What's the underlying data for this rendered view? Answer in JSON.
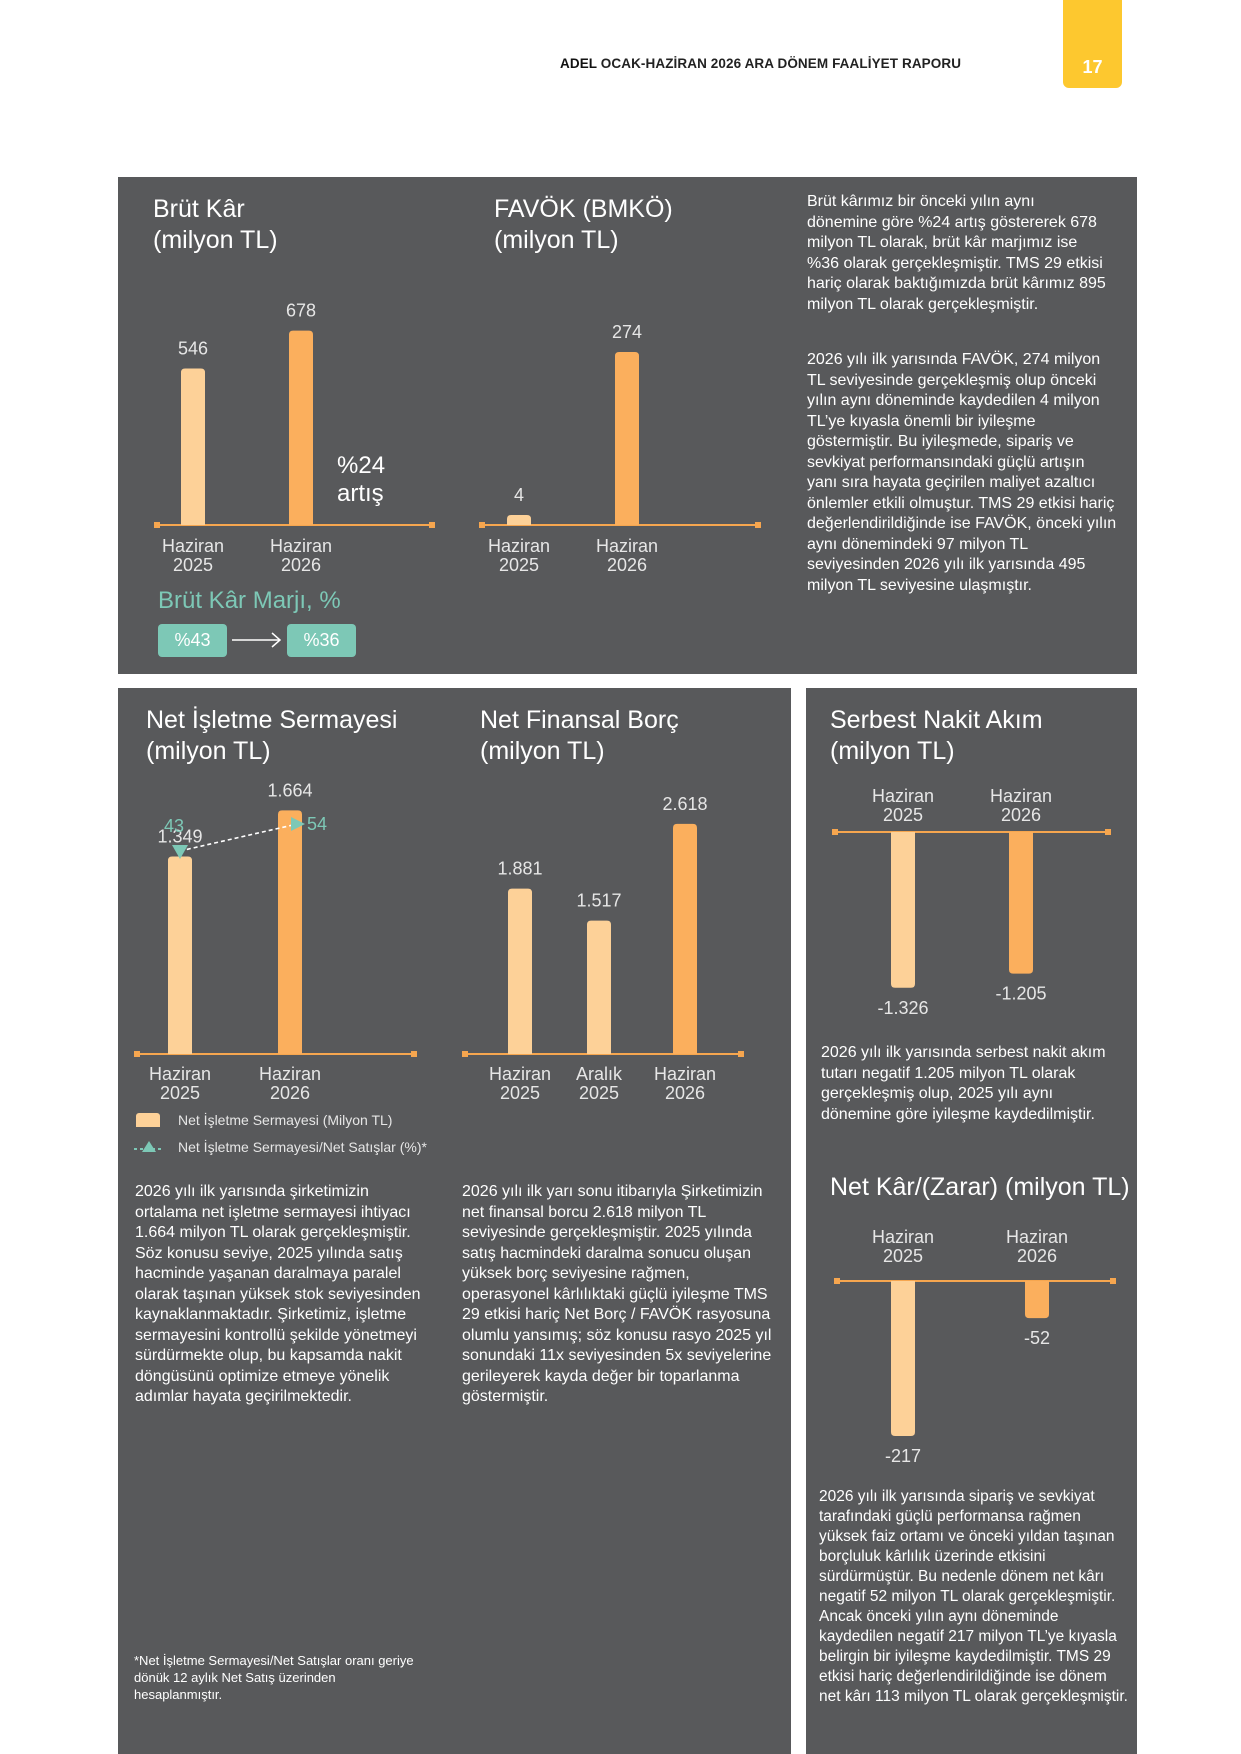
{
  "header": {
    "brand": "ADEL",
    "report_title": "OCAK-HAZİRAN 2026 ARA DÖNEM FAALİYET RAPORU",
    "page_number": "17"
  },
  "colors": {
    "panel": "#58595b",
    "bar_light": "#fdd198",
    "bar_dark": "#fbaf5d",
    "teal": "#7dc8b6",
    "axis": "#f6a64f",
    "tab": "#fdc82f"
  },
  "brut_kar": {
    "title": "Brüt Kâr\n(milyon TL)",
    "note": "%24\nartış",
    "margin_title": "Brüt Kâr Marjı, %",
    "margin_from": "%43",
    "margin_to": "%36"
  },
  "favok": {
    "title": "FAVÖK (BMKÖ)\n(milyon TL)"
  },
  "favok_text": {
    "p1": "Brüt kârımız bir önceki yılın aynı dönemine göre %24 artış göstererek 678 milyon TL olarak, brüt kâr marjımız ise %36 olarak gerçekleşmiştir. TMS 29 etkisi hariç olarak baktığımızda brüt kârımız 895 milyon TL olarak gerçekleşmiştir.",
    "p2": "2026 yılı ilk yarısında FAVÖK, 274 milyon TL seviyesinde gerçekleşmiş olup önceki yılın aynı döneminde kaydedilen 4 milyon TL’ye kıyasla önemli bir iyileşme göstermiştir. Bu iyileşmede, sipariş ve sevkiyat performansındaki güçlü artışın yanı sıra hayata geçirilen maliyet azaltıcı önlemler etkili olmuştur. TMS 29 etkisi hariç değerlendirildiğinde ise FAVÖK, önceki yılın aynı dönemindeki 97 milyon TL seviyesinden 2026 yılı ilk yarısında 495 milyon TL seviyesine ulaşmıştır."
  },
  "nis": {
    "title": "Net İşletme Sermayesi\n(milyon TL)",
    "legend_bar": "Net İşletme Sermayesi (Milyon TL)",
    "legend_line": "Net İşletme Sermayesi/Net Satışlar (%)*",
    "text": "2026 yılı ilk yarısında şirketimizin ortalama net işletme sermayesi ihtiyacı 1.664 milyon TL olarak gerçekleşmiştir. Söz konusu seviye, 2025 yılında satış hacminde yaşanan daralmaya paralel olarak taşınan yüksek stok seviyesinden kaynaklanmaktadır. Şirketimiz, işletme sermayesini kontrollü şekilde yönetmeyi sürdürmekte olup, bu kapsamda nakit döngüsünü optimize etmeye yönelik adımlar hayata geçirilmektedir.",
    "footnote": "*Net İşletme Sermayesi/Net Satışlar oranı geriye dönük 12 aylık Net Satış üzerinden hesaplanmıştır."
  },
  "nfb": {
    "title": "Net Finansal Borç\n(milyon TL)",
    "text": "2026 yılı ilk yarı sonu itibarıyla Şirketimizin net finansal borcu 2.618 milyon TL seviyesinde gerçekleşmiştir. 2025 yılında satış hacmindeki daralma sonucu oluşan yüksek borç seviyesine rağmen, operasyonel kârlılıktaki güçlü iyileşme TMS 29 etkisi hariç Net Borç / FAVÖK rasyosuna olumlu yansımış; söz konusu rasyo 2025 yıl sonundaki 11x seviyesinden 5x seviyelerine gerileyerek kayda değer bir toparlanma göstermiştir."
  },
  "sna": {
    "title": "Serbest Nakit Akım\n(milyon TL)",
    "text": "2026 yılı ilk yarısında serbest nakit akım tutarı negatif 1.205 milyon TL olarak gerçekleşmiş olup, 2025 yılı aynı dönemine göre iyileşme kaydedilmiştir."
  },
  "netkar": {
    "title": "Net Kâr/(Zarar) (milyon TL)",
    "text": "2026 yılı ilk yarısında sipariş ve sevkiyat tarafındaki güçlü performansa rağmen yüksek faiz ortamı ve önceki yıldan taşınan borçluluk kârlılık üzerinde etkisini sürdürmüştür. Bu nedenle dönem net kârı negatif 52 milyon TL olarak gerçekleşmiştir. Ancak önceki yılın aynı döneminde kaydedilen negatif 217 milyon TL’ye kıyasla belirgin bir iyileşme kaydedilmiştir. TMS 29 etkisi hariç değerlendirildiğinde ise dönem net kârı 113 milyon TL olarak gerçekleşmiştir."
  },
  "chart_data": [
    {
      "type": "bar",
      "id": "brut_kar",
      "categories": [
        "Haziran\n2025",
        "Haziran\n2026"
      ],
      "values": [
        546,
        678
      ],
      "labels": [
        "546",
        "678"
      ],
      "ylim": [
        0,
        800
      ]
    },
    {
      "type": "bar",
      "id": "favok",
      "categories": [
        "Haziran\n2025",
        "Haziran\n2026"
      ],
      "values": [
        4,
        274
      ],
      "labels": [
        "4",
        "274"
      ],
      "ylim": [
        0,
        320
      ]
    },
    {
      "type": "bar",
      "id": "nis",
      "categories": [
        "Haziran\n2025",
        "Haziran\n2026"
      ],
      "values": [
        1349,
        1664
      ],
      "labels": [
        "1.349",
        "1.664"
      ],
      "ylim": [
        0,
        2400
      ],
      "line_series": {
        "values": [
          43,
          54
        ],
        "labels": [
          "43",
          "54"
        ]
      }
    },
    {
      "type": "bar",
      "id": "nfb",
      "categories": [
        "Haziran\n2025",
        "Aralık\n2025",
        "Haziran\n2026"
      ],
      "values": [
        1881,
        1517,
        2618
      ],
      "labels": [
        "1.881",
        "1.517",
        "2.618"
      ],
      "ylim": [
        0,
        3600
      ]
    },
    {
      "type": "bar",
      "id": "sna",
      "categories": [
        "Haziran\n2025",
        "Haziran\n2026"
      ],
      "values": [
        -1326,
        -1205
      ],
      "labels": [
        "-1.326",
        "-1.205"
      ],
      "ylim": [
        -1500,
        0
      ]
    },
    {
      "type": "bar",
      "id": "netkar",
      "categories": [
        "Haziran\n2025",
        "Haziran\n2026"
      ],
      "values": [
        -217,
        -52
      ],
      "labels": [
        "-217",
        "-52"
      ],
      "ylim": [
        -240,
        0
      ]
    }
  ]
}
